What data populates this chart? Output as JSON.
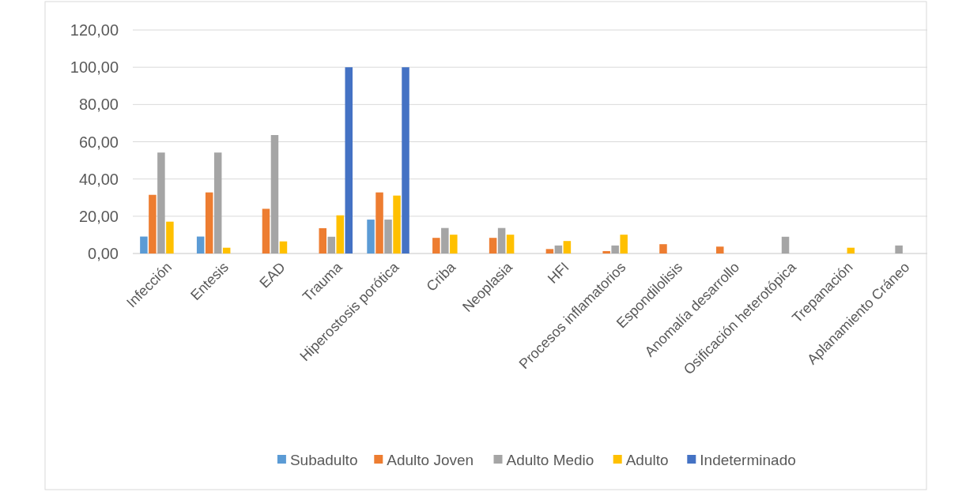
{
  "chart_data": {
    "type": "bar",
    "categories": [
      "Infección",
      "Entesis",
      "EAD",
      "Trauma",
      "Hiperostosis porótica",
      "Criba",
      "Neoplasia",
      "HFI",
      "Procesos inflamatorios",
      "Espondilolisis",
      "Anomalía desarrollo",
      "Osificación heterotópica",
      "Trepanación",
      "Aplanamiento Cráneo"
    ],
    "series": [
      {
        "name": "Subadulto",
        "color": "#5b9bd5",
        "values": [
          9.1,
          9.1,
          null,
          null,
          18.2,
          null,
          null,
          null,
          null,
          null,
          null,
          null,
          null,
          null
        ]
      },
      {
        "name": "Adulto Joven",
        "color": "#ed7d31",
        "values": [
          31.5,
          32.8,
          24.0,
          13.6,
          32.8,
          8.4,
          8.4,
          2.4,
          1.3,
          5.0,
          3.7,
          null,
          null,
          null
        ]
      },
      {
        "name": "Adulto Medio",
        "color": "#a5a5a5",
        "values": [
          54.2,
          54.2,
          63.6,
          9.0,
          18.2,
          13.7,
          13.7,
          4.3,
          4.3,
          null,
          null,
          9.0,
          null,
          4.3
        ]
      },
      {
        "name": "Adulto",
        "color": "#ffc000",
        "values": [
          17.1,
          3.1,
          6.5,
          20.5,
          31.1,
          10.1,
          10.1,
          6.7,
          10.1,
          null,
          null,
          null,
          3.1,
          null
        ]
      },
      {
        "name": "Indeterminado",
        "color": "#4472c4",
        "values": [
          null,
          null,
          null,
          100,
          100,
          null,
          null,
          null,
          null,
          null,
          null,
          null,
          null,
          null
        ]
      }
    ],
    "ylim": [
      0,
      120
    ],
    "yticks": [
      {
        "value": 0,
        "label": "0,00"
      },
      {
        "value": 20,
        "label": "20,00"
      },
      {
        "value": 40,
        "label": "40,00"
      },
      {
        "value": 60,
        "label": "60,00"
      },
      {
        "value": 80,
        "label": "80,00"
      },
      {
        "value": 100,
        "label": "100,00"
      },
      {
        "value": 120,
        "label": "120,00"
      }
    ],
    "grid": "y",
    "legend": "bottom"
  }
}
